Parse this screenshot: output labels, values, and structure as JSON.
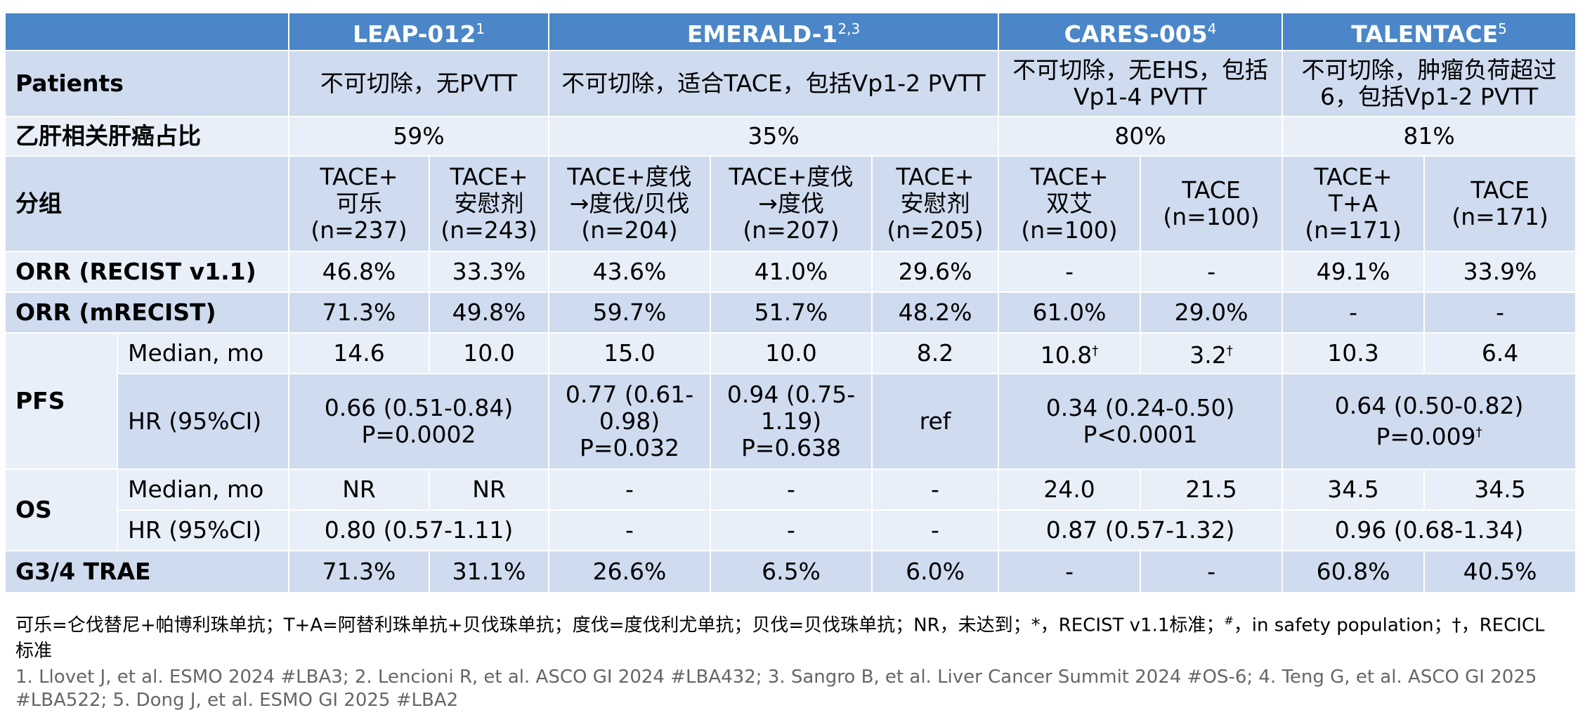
{
  "header": {
    "t1": "LEAP-012",
    "t1sup": "1",
    "t2": "EMERALD-1",
    "t2sup": "2,3",
    "t3": "CARES-005",
    "t3sup": "4",
    "t4": "TALENTACE",
    "t4sup": "5"
  },
  "patients": {
    "label": "Patients",
    "c1": "不可切除，无PVTT",
    "c2": "不可切除，适合TACE，包括Vp1-2 PVTT",
    "c3": "不可切除，无EHS，包括Vp1-4 PVTT",
    "c4": "不可切除，肿瘤负荷超过6，包括Vp1-2 PVTT"
  },
  "hbv": {
    "label": "乙肝相关肝癌占比",
    "c1": "59%",
    "c2": "35%",
    "c3": "80%",
    "c4": "81%"
  },
  "groups": {
    "label": "分组",
    "g1": [
      "TACE+",
      "可乐",
      "(n=237)"
    ],
    "g2": [
      "TACE+",
      "安慰剂",
      "(n=243)"
    ],
    "g3": [
      "TACE+度伐",
      "→度伐/贝伐",
      "(n=204)"
    ],
    "g4": [
      "TACE+度伐",
      "→度伐",
      "(n=207)"
    ],
    "g5": [
      "TACE+",
      "安慰剂",
      "(n=205)"
    ],
    "g6": [
      "TACE+",
      "双艾",
      "(n=100)"
    ],
    "g7": [
      "TACE",
      "(n=100)"
    ],
    "g8": [
      "TACE+",
      "T+A",
      "(n=171)"
    ],
    "g9": [
      "TACE",
      "(n=171)"
    ]
  },
  "orr_recist": {
    "label": "ORR (RECIST v1.1)",
    "values": [
      "46.8%",
      "33.3%",
      "43.6%",
      "41.0%",
      "29.6%",
      "-",
      "-",
      "49.1%",
      "33.9%"
    ]
  },
  "orr_mrecist": {
    "label": "ORR (mRECIST)",
    "values": [
      "71.3%",
      "49.8%",
      "59.7%",
      "51.7%",
      "48.2%",
      "61.0%",
      "29.0%",
      "-",
      "-"
    ]
  },
  "pfs": {
    "label": "PFS",
    "median_label": "Median, mo",
    "median": [
      "14.6",
      "10.0",
      "15.0",
      "10.0",
      "8.2",
      "10.8",
      "3.2",
      "10.3",
      "6.4"
    ],
    "median_mark": "†",
    "hr_label": "HR (95%CI)",
    "hr1": [
      "0.66 (0.51-0.84)",
      "P=0.0002"
    ],
    "hr2": [
      "0.77 (0.61-",
      "0.98)",
      "P=0.032"
    ],
    "hr3": [
      "0.94 (0.75-",
      "1.19)",
      "P=0.638"
    ],
    "hr4": "ref",
    "hr5": [
      "0.34 (0.24-0.50)",
      "P<0.0001"
    ],
    "hr6": [
      "0.64 (0.50-0.82)",
      "P=0.009"
    ],
    "hr6_mark": "†"
  },
  "os": {
    "label": "OS",
    "median_label": "Median, mo",
    "median": [
      "NR",
      "NR",
      "-",
      "-",
      "-",
      "24.0",
      "21.5",
      "34.5",
      "34.5"
    ],
    "hr_label": "HR (95%CI)",
    "hr1": "0.80 (0.57-1.11)",
    "hr2": "-",
    "hr3": "-",
    "hr4": "-",
    "hr5": "0.87 (0.57-1.32)",
    "hr6": "0.96 (0.68-1.34)"
  },
  "trae": {
    "label": "G3/4 TRAE",
    "values": [
      "71.3%",
      "31.1%",
      "26.6%",
      "6.5%",
      "6.0%",
      "-",
      "-",
      "60.8%",
      "40.5%"
    ]
  },
  "notes": {
    "part1": "可乐=仑伐替尼+帕博利珠单抗；T+A=阿替利珠单抗+贝伐珠单抗；度伐=度伐利尤单抗；贝伐=贝伐珠单抗；NR，未达到；*，RECIST v1.1标准；",
    "hash": "#",
    "part2": "，in safety population；†，RECICL标准"
  },
  "references": "1. Llovet J, et al. ESMO 2024 #LBA3; 2. Lencioni R, et al. ASCO GI 2024 #LBA432; 3. Sangro B, et al. Liver Cancer Summit 2024 #OS-6; 4. Teng G, et al. ASCO GI 2025 #LBA522; 5. Dong J, et al. ESMO GI 2025 #LBA2"
}
